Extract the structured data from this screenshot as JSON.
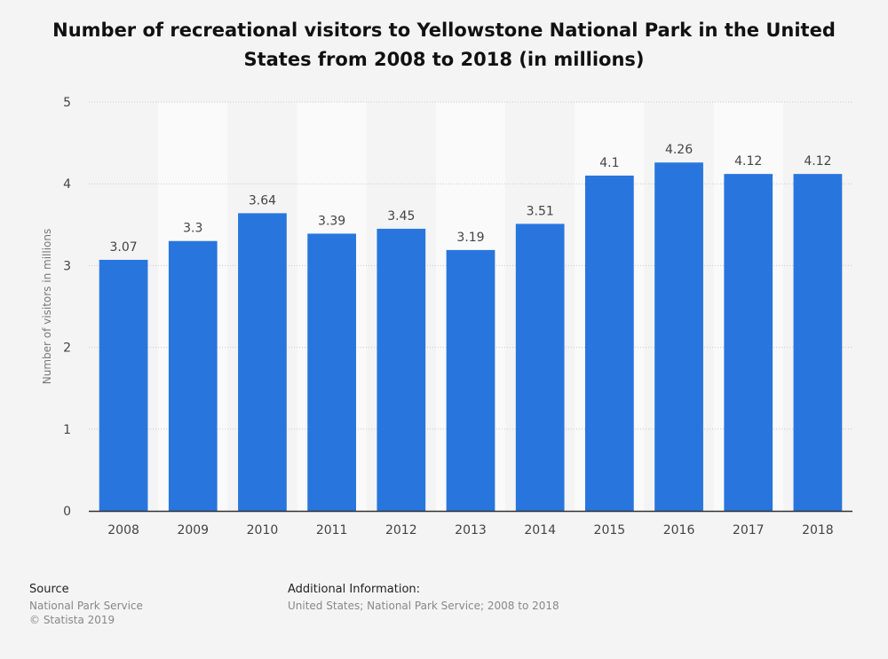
{
  "title": "Number of recreational visitors to Yellowstone National Park in the United States from 2008 to 2018 (in millions)",
  "footer": {
    "source_heading": "Source",
    "source_lines": [
      "National Park Service",
      "© Statista 2019"
    ],
    "additional_heading": "Additional Information:",
    "additional_text": "United States; National Park Service; 2008 to 2018"
  },
  "chart_data": {
    "type": "bar",
    "categories": [
      "2008",
      "2009",
      "2010",
      "2011",
      "2012",
      "2013",
      "2014",
      "2015",
      "2016",
      "2017",
      "2018"
    ],
    "values": [
      3.07,
      3.3,
      3.64,
      3.39,
      3.45,
      3.19,
      3.51,
      4.1,
      4.26,
      4.12,
      4.12
    ],
    "data_labels": [
      "3.07",
      "3.3",
      "3.64",
      "3.39",
      "3.45",
      "3.19",
      "3.51",
      "4.1",
      "4.26",
      "4.12",
      "4.12"
    ],
    "ylabel": "Number of visitors in millions",
    "xlabel": "",
    "ylim": [
      0,
      5
    ],
    "yticks": [
      0,
      1,
      2,
      3,
      4,
      5
    ],
    "grid": true,
    "colors": {
      "bar": "#2876dd",
      "band": "#fafafa",
      "grid": "#c8c8c8",
      "axis": "#333333",
      "label": "#444444"
    }
  }
}
